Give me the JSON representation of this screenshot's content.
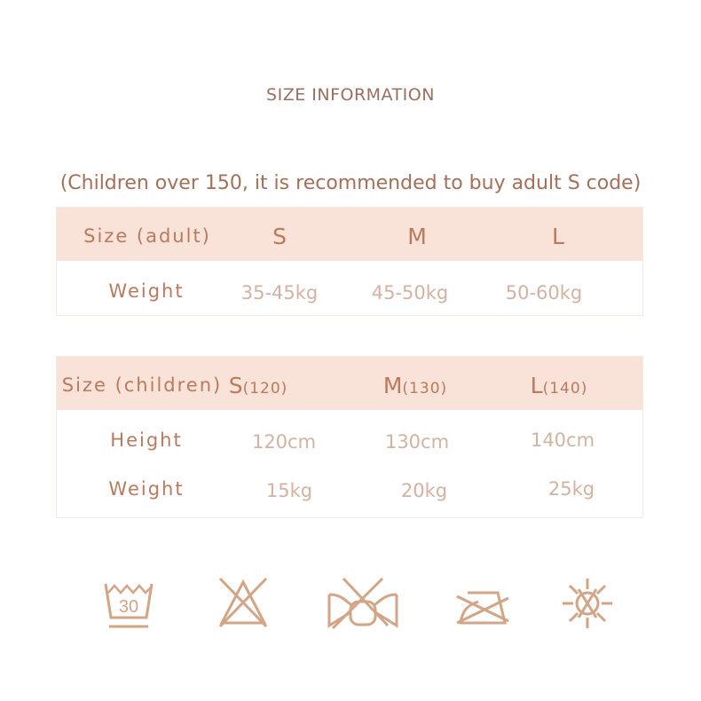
{
  "title": "SIZE INFORMATION",
  "note": "(Children over 150, it is recommended to buy adult S code)",
  "adult": {
    "header": [
      "Size (adult)",
      "S",
      "M",
      "L"
    ],
    "rows": [
      {
        "label": "Weight",
        "values": [
          "35-45kg",
          "45-50kg",
          "50-60kg"
        ]
      }
    ]
  },
  "children": {
    "header_label": "Size (children)",
    "sizes": [
      {
        "letter": "S",
        "height": "(120)"
      },
      {
        "letter": "M",
        "height": "(130)"
      },
      {
        "letter": "L",
        "height": "(140)"
      }
    ],
    "rows": [
      {
        "label": "Height",
        "values": [
          "120cm",
          "130cm",
          "140cm"
        ]
      },
      {
        "label": "Weight",
        "values": [
          "15kg",
          "20kg",
          "25kg"
        ]
      }
    ]
  },
  "care_icons": {
    "items": [
      "wash-30-icon",
      "do-not-bleach-icon",
      "do-not-wring-icon",
      "do-not-iron-icon",
      "do-not-sun-dry-icon"
    ],
    "wash_temp": "30"
  },
  "colors": {
    "header_bg": "#f9e2d8",
    "text": "#b97a5d",
    "icon": "#d4a486"
  }
}
